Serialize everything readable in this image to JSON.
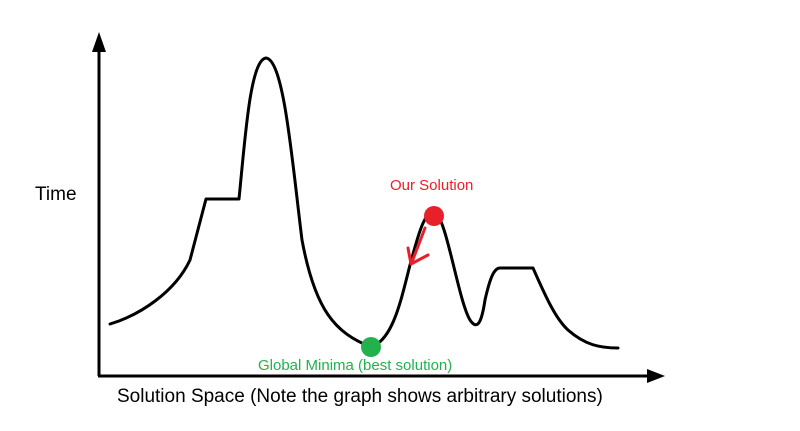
{
  "axes": {
    "y_label": "Time",
    "x_label": "Solution Space (Note the graph shows arbitrary solutions)"
  },
  "markers": {
    "our_solution": {
      "label": "Our Solution",
      "color": "#e8202a"
    },
    "global_minima": {
      "label": "Global Minima (best solution)",
      "color": "#22b14c"
    }
  },
  "colors": {
    "curve": "#000000",
    "axis": "#000000",
    "arrow": "#e8202a"
  }
}
